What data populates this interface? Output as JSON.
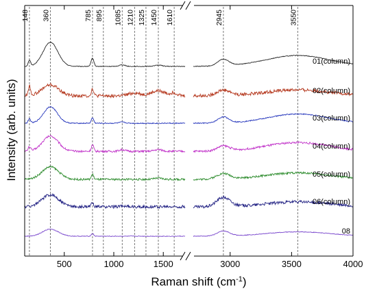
{
  "chart_data": {
    "type": "line",
    "title": "",
    "xlabel": "Raman shift (cm",
    "xlabel_sup": "-1",
    "xlabel_end": ")",
    "ylabel": "Intensity (arb. units)",
    "x_axis_break": true,
    "x_segments": [
      {
        "range": [
          100,
          1720
        ],
        "ticks": [
          500,
          1000,
          1500
        ]
      },
      {
        "range": [
          2700,
          4000
        ],
        "ticks": [
          3000,
          3500,
          4000
        ]
      }
    ],
    "x_tick_labels": [
      "500",
      "1000",
      "1500",
      "3000",
      "3500",
      "4000"
    ],
    "peak_markers": [
      {
        "x": 148,
        "label": "148"
      },
      {
        "x": 360,
        "label": "360"
      },
      {
        "x": 785,
        "label": "785"
      },
      {
        "x": 895,
        "label": "895"
      },
      {
        "x": 1085,
        "label": "1085"
      },
      {
        "x": 1210,
        "label": "1210"
      },
      {
        "x": 1325,
        "label": "1325"
      },
      {
        "x": 1450,
        "label": "1450"
      },
      {
        "x": 1610,
        "label": "1610"
      },
      {
        "x": 2945,
        "label": "2945"
      },
      {
        "x": 3550,
        "label": "3550"
      }
    ],
    "series": [
      {
        "name": "01(column)",
        "color": "#222222",
        "noise": 0.01,
        "peaks": [
          [
            148,
            0.55,
            12
          ],
          [
            360,
            2.2,
            75
          ],
          [
            785,
            0.75,
            14
          ],
          [
            1085,
            0.15,
            30
          ],
          [
            1450,
            0.12,
            40
          ],
          [
            2945,
            0.6,
            45
          ],
          [
            3550,
            1.0,
            260
          ]
        ]
      },
      {
        "name": "02(column)",
        "color": "#b5391f",
        "noise": 0.05,
        "peaks": [
          [
            148,
            0.85,
            12
          ],
          [
            360,
            1.0,
            85
          ],
          [
            785,
            0.65,
            12
          ],
          [
            1210,
            0.25,
            60
          ],
          [
            1450,
            0.45,
            70
          ],
          [
            1610,
            0.25,
            35
          ],
          [
            2945,
            0.5,
            55
          ],
          [
            3550,
            0.55,
            260
          ]
        ]
      },
      {
        "name": "03(column)",
        "color": "#2233bb",
        "noise": 0.015,
        "peaks": [
          [
            148,
            0.4,
            12
          ],
          [
            360,
            1.5,
            70
          ],
          [
            785,
            0.5,
            12
          ],
          [
            1085,
            0.1,
            30
          ],
          [
            2945,
            0.55,
            45
          ],
          [
            3550,
            0.85,
            240
          ]
        ]
      },
      {
        "name": "04(column)",
        "color": "#c030c8",
        "noise": 0.03,
        "peaks": [
          [
            148,
            0.4,
            12
          ],
          [
            360,
            1.4,
            80
          ],
          [
            785,
            0.6,
            12
          ],
          [
            1085,
            0.15,
            30
          ],
          [
            1450,
            0.15,
            40
          ],
          [
            2945,
            0.45,
            50
          ],
          [
            3550,
            0.8,
            260
          ]
        ]
      },
      {
        "name": "05(column)",
        "color": "#2a8a2a",
        "noise": 0.03,
        "peaks": [
          [
            360,
            1.15,
            85
          ],
          [
            785,
            0.45,
            12
          ],
          [
            1450,
            0.12,
            40
          ],
          [
            2945,
            0.5,
            55
          ],
          [
            3550,
            0.6,
            260
          ]
        ]
      },
      {
        "name": "06(column)",
        "color": "#1c1c80",
        "noise": 0.045,
        "peaks": [
          [
            360,
            1.1,
            85
          ],
          [
            785,
            0.4,
            12
          ],
          [
            1085,
            0.1,
            30
          ],
          [
            2945,
            0.85,
            55
          ],
          [
            3550,
            0.45,
            260
          ]
        ]
      },
      {
        "name": "08",
        "color": "#7744cc",
        "noise": 0.01,
        "peaks": [
          [
            360,
            0.65,
            80
          ],
          [
            785,
            0.25,
            12
          ],
          [
            2945,
            0.45,
            50
          ],
          [
            3550,
            0.4,
            260
          ]
        ]
      }
    ]
  }
}
